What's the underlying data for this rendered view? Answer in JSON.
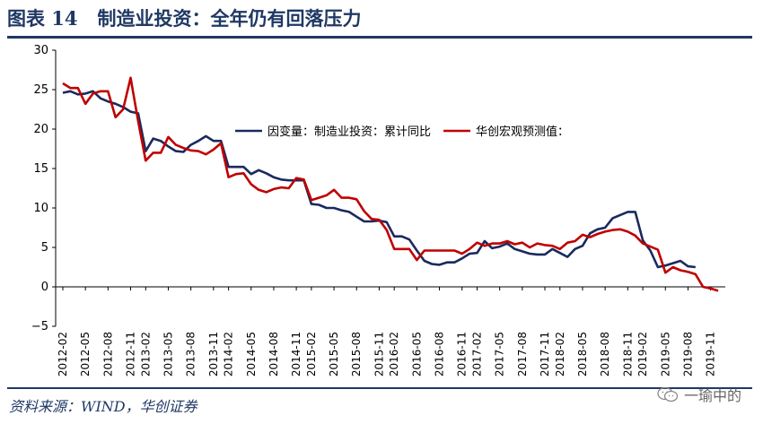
{
  "header": {
    "figure_label": "图表 14",
    "title": "制造业投资：全年仍有回落压力"
  },
  "footer": {
    "source": "资料来源：WIND，华创证券",
    "watermark": "一瑜中的"
  },
  "colors": {
    "accent": "#1f3864",
    "series_actual": "#1a2a5e",
    "series_forecast": "#c00000"
  },
  "chart_data": {
    "type": "line",
    "legend_position": "upper-center",
    "ylim": [
      -5,
      30
    ],
    "yticks": [
      -5,
      0,
      5,
      10,
      15,
      20,
      25,
      30
    ],
    "grid": false,
    "x": [
      "2012-02",
      "2012-03",
      "2012-04",
      "2012-05",
      "2012-06",
      "2012-07",
      "2012-08",
      "2012-09",
      "2012-10",
      "2012-11",
      "2012-12",
      "2013-02",
      "2013-03",
      "2013-04",
      "2013-05",
      "2013-06",
      "2013-07",
      "2013-08",
      "2013-09",
      "2013-10",
      "2013-11",
      "2013-12",
      "2014-02",
      "2014-03",
      "2014-04",
      "2014-05",
      "2014-06",
      "2014-07",
      "2014-08",
      "2014-09",
      "2014-10",
      "2014-11",
      "2014-12",
      "2015-02",
      "2015-03",
      "2015-04",
      "2015-05",
      "2015-06",
      "2015-07",
      "2015-08",
      "2015-09",
      "2015-10",
      "2015-11",
      "2015-12",
      "2016-02",
      "2016-03",
      "2016-04",
      "2016-05",
      "2016-06",
      "2016-07",
      "2016-08",
      "2016-09",
      "2016-10",
      "2016-11",
      "2016-12",
      "2017-02",
      "2017-03",
      "2017-04",
      "2017-05",
      "2017-06",
      "2017-07",
      "2017-08",
      "2017-09",
      "2017-10",
      "2017-11",
      "2017-12",
      "2018-02",
      "2018-03",
      "2018-04",
      "2018-05",
      "2018-06",
      "2018-07",
      "2018-08",
      "2018-09",
      "2018-10",
      "2018-11",
      "2018-12",
      "2019-02",
      "2019-03",
      "2019-04",
      "2019-05",
      "2019-06",
      "2019-07",
      "2019-08",
      "2019-09",
      "2019-10",
      "2019-11",
      "2019-12"
    ],
    "x_tick_labels": [
      "2012-02",
      "2012-05",
      "2012-08",
      "2012-11",
      "2013-02",
      "2013-05",
      "2013-08",
      "2013-11",
      "2014-02",
      "2014-05",
      "2014-08",
      "2014-11",
      "2015-02",
      "2015-05",
      "2015-08",
      "2015-11",
      "2016-02",
      "2016-05",
      "2016-08",
      "2016-11",
      "2017-02",
      "2017-05",
      "2017-08",
      "2017-11",
      "2018-02",
      "2018-05",
      "2018-08",
      "2018-11",
      "2019-02",
      "2019-05",
      "2019-08",
      "2019-11"
    ],
    "series": [
      {
        "name": "因变量：制造业投资：累计同比",
        "color": "#1a2a5e",
        "values": [
          24.6,
          24.8,
          24.4,
          24.5,
          24.8,
          23.9,
          23.5,
          23.2,
          22.8,
          22.2,
          22.0,
          17.2,
          18.8,
          18.5,
          17.8,
          17.2,
          17.1,
          18.0,
          18.5,
          19.1,
          18.5,
          18.5,
          15.2,
          15.2,
          15.2,
          14.3,
          14.8,
          14.4,
          13.9,
          13.6,
          13.5,
          13.5,
          13.5,
          10.5,
          10.4,
          10.0,
          10.0,
          9.7,
          9.5,
          8.9,
          8.3,
          8.3,
          8.4,
          8.2,
          6.4,
          6.4,
          6.0,
          4.6,
          3.3,
          2.9,
          2.8,
          3.1,
          3.1,
          3.6,
          4.2,
          4.3,
          5.8,
          4.9,
          5.1,
          5.5,
          4.8,
          4.5,
          4.2,
          4.1,
          4.1,
          4.8,
          4.3,
          3.8,
          4.8,
          5.2,
          6.8,
          7.3,
          7.5,
          8.7,
          9.1,
          9.5,
          9.5,
          5.9,
          4.6,
          2.5,
          2.7,
          3.0,
          3.3,
          2.6,
          2.5,
          null,
          null,
          null
        ]
      },
      {
        "name": "华创宏观预测值：",
        "color": "#c00000",
        "values": [
          25.8,
          25.2,
          25.2,
          23.2,
          24.5,
          24.8,
          24.8,
          21.5,
          22.5,
          26.5,
          21.0,
          16.0,
          17.0,
          17.0,
          19.0,
          18.0,
          17.6,
          17.3,
          17.2,
          16.8,
          17.4,
          18.2,
          13.9,
          14.3,
          14.4,
          13.0,
          12.3,
          12.0,
          12.4,
          12.6,
          12.5,
          13.8,
          13.6,
          11.0,
          11.3,
          11.6,
          12.3,
          11.3,
          11.3,
          11.1,
          9.6,
          8.6,
          8.5,
          7.2,
          4.8,
          4.8,
          4.8,
          3.4,
          4.6,
          4.6,
          4.6,
          4.6,
          4.6,
          4.2,
          4.8,
          5.6,
          5.2,
          5.5,
          5.5,
          5.8,
          5.4,
          5.6,
          5.0,
          5.5,
          5.3,
          5.2,
          4.8,
          5.6,
          5.8,
          6.6,
          6.3,
          6.7,
          7.0,
          7.2,
          7.3,
          7.0,
          6.5,
          5.5,
          5.1,
          4.7,
          1.8,
          2.5,
          2.1,
          1.9,
          1.6,
          0.0,
          -0.2,
          -0.5
        ]
      }
    ]
  }
}
